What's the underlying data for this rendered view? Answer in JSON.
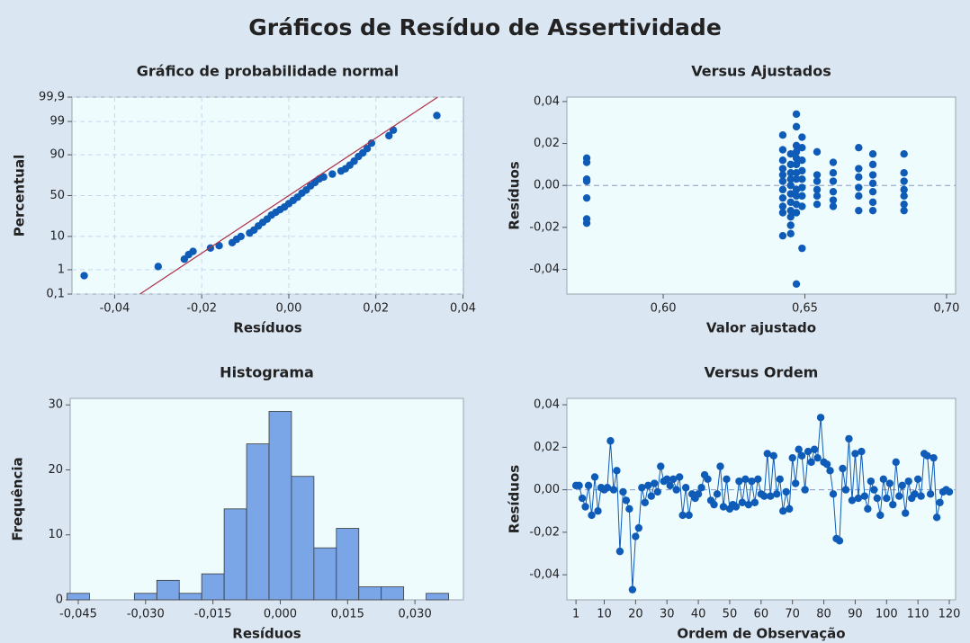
{
  "title": "Gráficos de Resíduo de Assertividade",
  "chart_data": [
    {
      "type": "scatter",
      "title": "Gráfico de probabilidade normal",
      "x_label": "Resíduos",
      "y_label": "Percentual",
      "yscale": "normal-probability",
      "grid": true,
      "xlim": [
        -0.0498,
        0.0401
      ],
      "ylim": [
        0.1,
        99.9
      ],
      "xticks": [
        {
          "value": -0.04,
          "label": "-0,04"
        },
        {
          "value": -0.02,
          "label": "-0,02"
        },
        {
          "value": 0,
          "label": "0,00"
        },
        {
          "value": 0.02,
          "label": "0,02"
        },
        {
          "value": 0.04,
          "label": "0,04"
        }
      ],
      "yticks": [
        {
          "value": 0.1,
          "label": "0,1"
        },
        1,
        10,
        50,
        90,
        99,
        {
          "value": 99.9,
          "label": "99,9"
        }
      ],
      "series": [
        {
          "kind": "points",
          "color": "#0f5cb8",
          "x": [
            -0.047,
            -0.03,
            -0.024,
            -0.023,
            -0.022,
            -0.018,
            -0.016,
            -0.013,
            -0.012,
            -0.011,
            -0.009,
            -0.008,
            -0.007,
            -0.006,
            -0.005,
            -0.004,
            -0.003,
            -0.002,
            -0.001,
            0.0,
            0.001,
            0.002,
            0.003,
            0.004,
            0.005,
            0.006,
            0.007,
            0.008,
            0.01,
            0.012,
            0.013,
            0.014,
            0.015,
            0.016,
            0.017,
            0.018,
            0.019,
            0.023,
            0.024,
            0.034
          ],
          "values": [
            0.6,
            1.3,
            2.3,
            3.2,
            4,
            5,
            5.8,
            7,
            8.5,
            10,
            12,
            14,
            17,
            20,
            23,
            27,
            30,
            33,
            36,
            40,
            44,
            48,
            53,
            57,
            62,
            66,
            70,
            72,
            75,
            78,
            80,
            83,
            86,
            89,
            91,
            93,
            95,
            97,
            98,
            99.4
          ]
        },
        {
          "kind": "line",
          "color": "#b0304a",
          "x": [
            -0.0342,
            0.0342
          ],
          "values": [
            0.1,
            99.9
          ]
        }
      ]
    },
    {
      "type": "scatter",
      "title": "Versus Ajustados",
      "x_label": "Valor ajustado",
      "y_label": "Resíduos",
      "reference_line": 0,
      "xlim": [
        0.566,
        0.7032
      ],
      "ylim": [
        -0.0518,
        0.0421
      ],
      "xticks": [
        {
          "value": 0.6,
          "label": "0,60"
        },
        {
          "value": 0.65,
          "label": "0,65"
        },
        {
          "value": 0.7,
          "label": "0,70"
        }
      ],
      "yticks": [
        {
          "value": -0.04,
          "label": "-0,04"
        },
        {
          "value": -0.02,
          "label": "-0,02"
        },
        {
          "value": 0,
          "label": "0,00"
        },
        {
          "value": 0.02,
          "label": "0,02"
        },
        {
          "value": 0.04,
          "label": "0,04"
        }
      ],
      "series": [
        {
          "kind": "points",
          "color": "#0f5cb8",
          "x": [
            0.573,
            0.573,
            0.573,
            0.573,
            0.573,
            0.573,
            0.573,
            0.6422,
            0.6422,
            0.6422,
            0.6422,
            0.6422,
            0.6422,
            0.6422,
            0.6422,
            0.6422,
            0.6422,
            0.6422,
            0.645,
            0.645,
            0.645,
            0.645,
            0.645,
            0.645,
            0.645,
            0.645,
            0.645,
            0.645,
            0.645,
            0.647,
            0.647,
            0.647,
            0.647,
            0.647,
            0.647,
            0.647,
            0.647,
            0.647,
            0.647,
            0.647,
            0.647,
            0.647,
            0.649,
            0.649,
            0.649,
            0.649,
            0.649,
            0.649,
            0.649,
            0.649,
            0.649,
            0.6543,
            0.6543,
            0.6543,
            0.6543,
            0.6543,
            0.6543,
            0.66,
            0.66,
            0.66,
            0.66,
            0.66,
            0.66,
            0.669,
            0.669,
            0.669,
            0.669,
            0.669,
            0.669,
            0.674,
            0.674,
            0.674,
            0.674,
            0.674,
            0.674,
            0.674,
            0.685,
            0.685,
            0.685,
            0.685,
            0.685,
            0.685,
            0.685
          ],
          "values": [
            0.013,
            0.011,
            0.003,
            0.002,
            -0.006,
            -0.016,
            -0.018,
            0.024,
            0.017,
            0.012,
            0.008,
            0.005,
            0.002,
            -0.002,
            -0.006,
            -0.01,
            -0.013,
            -0.024,
            0.015,
            0.01,
            0.006,
            0.003,
            0.0,
            -0.004,
            -0.008,
            -0.012,
            -0.015,
            -0.019,
            -0.023,
            0.034,
            0.028,
            0.019,
            0.016,
            0.013,
            0.01,
            0.006,
            0.003,
            -0.002,
            -0.005,
            -0.009,
            -0.013,
            -0.047,
            0.023,
            0.018,
            0.012,
            0.007,
            0.003,
            -0.001,
            -0.005,
            -0.01,
            -0.03,
            0.016,
            0.005,
            0.002,
            -0.002,
            -0.005,
            -0.009,
            0.011,
            0.006,
            0.002,
            -0.003,
            -0.007,
            -0.01,
            0.018,
            0.008,
            0.004,
            -0.001,
            -0.005,
            -0.012,
            0.015,
            0.01,
            0.005,
            0.001,
            -0.003,
            -0.008,
            -0.012,
            0.015,
            0.006,
            0.002,
            -0.002,
            -0.005,
            -0.009,
            -0.012
          ]
        }
      ]
    },
    {
      "type": "histogram",
      "title": "Histograma",
      "x_label": "Resíduos",
      "y_label": "Frequência",
      "color": "#7aa6e8",
      "edge_color": "#3a3a3a",
      "xlim": [
        -0.0468,
        0.0408
      ],
      "ylim": [
        0,
        31
      ],
      "xticks": [
        {
          "value": -0.045,
          "label": "-0,045"
        },
        {
          "value": -0.03,
          "label": "-0,030"
        },
        {
          "value": -0.015,
          "label": "-0,015"
        },
        {
          "value": 0,
          "label": "0,000"
        },
        {
          "value": 0.015,
          "label": "0,015"
        },
        {
          "value": 0.03,
          "label": "0,030"
        }
      ],
      "yticks": [
        0,
        10,
        20,
        30
      ],
      "bins": [
        -0.0475,
        -0.0425,
        -0.0375,
        -0.0325,
        -0.0275,
        -0.0225,
        -0.0175,
        -0.0125,
        -0.0075,
        -0.0025,
        0.0025,
        0.0075,
        0.0125,
        0.0175,
        0.0225,
        0.0275,
        0.0325,
        0.0375
      ],
      "counts": [
        1,
        0,
        0,
        1,
        3,
        1,
        4,
        14,
        24,
        29,
        19,
        8,
        11,
        2,
        2,
        0,
        1
      ]
    },
    {
      "type": "line",
      "title": "Versus Ordem",
      "x_label": "Ordem de Observação",
      "y_label": "Resíduos",
      "reference_line": 0,
      "xlim": [
        -1.9,
        122
      ],
      "ylim": [
        -0.0518,
        0.043
      ],
      "xticks": [
        1,
        10,
        20,
        30,
        40,
        50,
        60,
        70,
        80,
        90,
        100,
        110,
        120
      ],
      "yticks": [
        {
          "value": -0.04,
          "label": "-0,04"
        },
        {
          "value": -0.02,
          "label": "-0,02"
        },
        {
          "value": 0,
          "label": "0,00"
        },
        {
          "value": 0.02,
          "label": "0,02"
        },
        {
          "value": 0.04,
          "label": "0,04"
        }
      ],
      "series": [
        {
          "color": "#0f5cb8",
          "x": [
            1,
            2,
            3,
            4,
            5,
            6,
            7,
            8,
            9,
            10,
            11,
            12,
            13,
            14,
            15,
            16,
            17,
            18,
            19,
            20,
            21,
            22,
            23,
            24,
            25,
            26,
            27,
            28,
            29,
            30,
            31,
            32,
            33,
            34,
            35,
            36,
            37,
            38,
            39,
            40,
            41,
            42,
            43,
            44,
            45,
            46,
            47,
            48,
            49,
            50,
            51,
            52,
            53,
            54,
            55,
            56,
            57,
            58,
            59,
            60,
            61,
            62,
            63,
            64,
            65,
            66,
            67,
            68,
            69,
            70,
            71,
            72,
            73,
            74,
            75,
            76,
            77,
            78,
            79,
            80,
            81,
            82,
            83,
            84,
            85,
            86,
            87,
            88,
            89,
            90,
            91,
            92,
            93,
            94,
            95,
            96,
            97,
            98,
            99,
            100,
            101,
            102,
            103,
            104,
            105,
            106,
            107,
            108,
            109,
            110,
            111,
            112,
            113,
            114,
            115,
            116,
            117,
            118,
            119,
            120
          ],
          "values": [
            0.002,
            0.002,
            -0.004,
            -0.008,
            0.002,
            -0.012,
            0.006,
            -0.01,
            0.001,
            0.0,
            0.001,
            0.023,
            0.0,
            0.009,
            -0.029,
            -0.001,
            -0.005,
            -0.009,
            -0.047,
            -0.022,
            -0.018,
            0.001,
            -0.006,
            0.002,
            -0.003,
            0.003,
            -0.001,
            0.011,
            0.004,
            0.005,
            0.002,
            0.005,
            0.0,
            0.006,
            -0.012,
            0.001,
            -0.012,
            -0.002,
            -0.004,
            -0.002,
            0.001,
            0.007,
            0.005,
            -0.005,
            -0.007,
            -0.002,
            0.011,
            -0.008,
            0.005,
            -0.009,
            -0.007,
            -0.008,
            0.004,
            -0.006,
            0.005,
            -0.007,
            0.004,
            -0.006,
            0.005,
            -0.002,
            -0.003,
            0.017,
            -0.003,
            0.016,
            -0.002,
            0.005,
            -0.01,
            -0.001,
            -0.009,
            0.015,
            0.003,
            0.019,
            0.016,
            0.0,
            0.018,
            0.013,
            0.019,
            0.015,
            0.034,
            0.013,
            0.012,
            0.009,
            -0.002,
            -0.023,
            -0.024,
            0.01,
            0.0,
            0.024,
            -0.005,
            0.017,
            -0.004,
            0.018,
            -0.003,
            -0.009,
            0.004,
            0.0,
            -0.004,
            -0.012,
            0.005,
            -0.004,
            0.003,
            -0.007,
            0.013,
            -0.003,
            0.002,
            -0.011,
            0.004,
            -0.004,
            -0.002,
            0.005,
            -0.003,
            0.017,
            0.016,
            -0.002,
            0.015,
            -0.013,
            -0.006,
            -0.001,
            0.0,
            -0.001
          ]
        }
      ]
    }
  ]
}
